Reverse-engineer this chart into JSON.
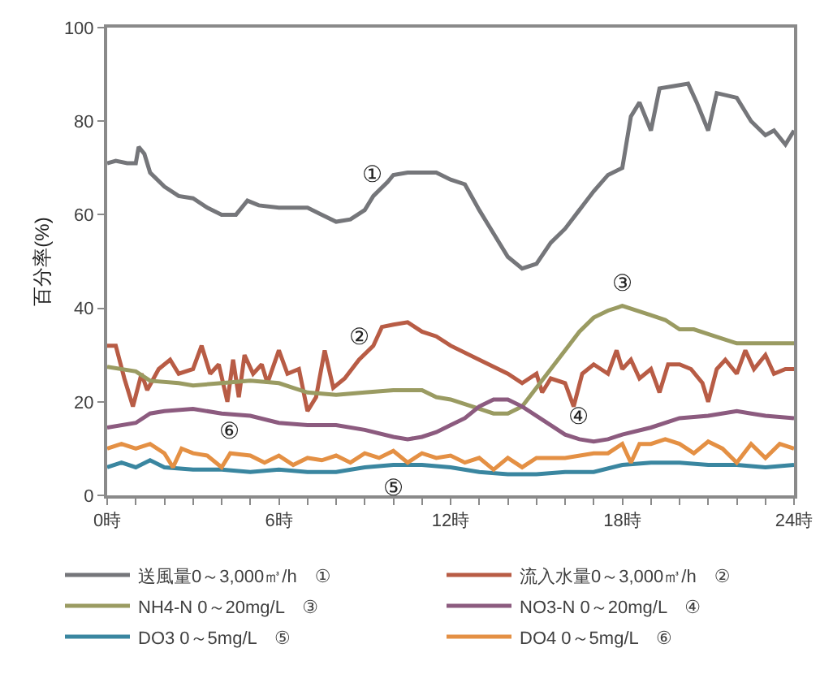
{
  "chart_data": {
    "type": "line",
    "ylabel": "百分率(%)",
    "xlim": [
      0,
      24
    ],
    "ylim": [
      0,
      100
    ],
    "yticks": [
      0,
      20,
      40,
      60,
      80,
      100
    ],
    "xticks": [
      {
        "value": 0,
        "label": "0時"
      },
      {
        "value": 1,
        "label": null
      },
      {
        "value": 2,
        "label": null
      },
      {
        "value": 3,
        "label": null
      },
      {
        "value": 4,
        "label": null
      },
      {
        "value": 5,
        "label": null
      },
      {
        "value": 6,
        "label": "6時"
      },
      {
        "value": 7,
        "label": null
      },
      {
        "value": 8,
        "label": null
      },
      {
        "value": 9,
        "label": null
      },
      {
        "value": 10,
        "label": null
      },
      {
        "value": 11,
        "label": null
      },
      {
        "value": 12,
        "label": "12時"
      },
      {
        "value": 13,
        "label": null
      },
      {
        "value": 14,
        "label": null
      },
      {
        "value": 15,
        "label": null
      },
      {
        "value": 16,
        "label": null
      },
      {
        "value": 17,
        "label": null
      },
      {
        "value": 18,
        "label": "18時"
      },
      {
        "value": 19,
        "label": null
      },
      {
        "value": 20,
        "label": null
      },
      {
        "value": 21,
        "label": null
      },
      {
        "value": 22,
        "label": null
      },
      {
        "value": 23,
        "label": null
      },
      {
        "value": 24,
        "label": "24時"
      }
    ],
    "grid": false,
    "legend": "bottom",
    "marker": "none",
    "line_style": "solid",
    "annotations": [
      {
        "text": "①",
        "x": 9.3,
        "y": 64
      },
      {
        "text": "②",
        "x": 8.8,
        "y": 29
      },
      {
        "text": "③",
        "x": 18,
        "y": 40.5
      },
      {
        "text": "④",
        "x": 16.5,
        "y": 12
      },
      {
        "text": "⑤",
        "x": 10,
        "y": 6.5
      },
      {
        "text": "⑥",
        "x": 4.3,
        "y": 9
      }
    ],
    "series": [
      {
        "name": "送風量0～3,000㎥/h　①",
        "color": "#75767a",
        "x": [
          0,
          0.3,
          0.7,
          1.0,
          1.1,
          1.3,
          1.5,
          2,
          2.5,
          3,
          3.5,
          4,
          4.5,
          4.9,
          5.3,
          6,
          7,
          7.5,
          8,
          8.5,
          9,
          9.3,
          9.8,
          10,
          10.5,
          11,
          11.5,
          12,
          12.5,
          13,
          13.5,
          14,
          14.5,
          15,
          15.5,
          16,
          16.5,
          17,
          17.5,
          18,
          18.3,
          18.6,
          19,
          19.3,
          19.8,
          20.3,
          20.6,
          21,
          21.3,
          22,
          22.5,
          23,
          23.3,
          23.7,
          24
        ],
        "values": [
          71,
          71.5,
          71,
          71,
          74.5,
          73,
          69,
          66,
          64,
          63.5,
          61.5,
          60,
          60,
          63,
          62,
          61.5,
          61.5,
          60,
          58.5,
          59,
          61,
          64,
          67,
          68.5,
          69,
          69,
          69,
          67.5,
          66.5,
          61,
          56,
          51,
          48.5,
          49.5,
          54,
          57,
          61,
          65,
          68.5,
          70,
          81,
          84,
          78,
          87,
          87.5,
          88,
          84,
          78,
          86,
          85,
          80,
          77,
          78,
          75,
          78
        ]
      },
      {
        "name": "流入水量0～3,000㎥/h　②",
        "color": "#b85c45",
        "x": [
          0,
          0.3,
          0.6,
          0.9,
          1.2,
          1.4,
          1.8,
          2.2,
          2.5,
          3,
          3.3,
          3.6,
          3.9,
          4.2,
          4.4,
          4.6,
          4.8,
          5.1,
          5.4,
          5.6,
          6,
          6.3,
          6.7,
          7,
          7.3,
          7.6,
          7.9,
          8.3,
          8.8,
          9.3,
          9.6,
          10,
          10.5,
          11,
          11.5,
          12,
          13,
          14,
          14.5,
          15,
          15.2,
          15.5,
          16,
          16.3,
          16.6,
          17,
          17.5,
          17.8,
          18,
          18.3,
          18.6,
          19,
          19.3,
          19.6,
          20,
          20.4,
          20.8,
          21,
          21.3,
          21.6,
          22,
          22.3,
          22.6,
          23,
          23.3,
          23.7,
          24
        ],
        "values": [
          32,
          32,
          25,
          19,
          26,
          22.5,
          27,
          29,
          26,
          27,
          32,
          26,
          28,
          20,
          29,
          21,
          30,
          26,
          28,
          24,
          31,
          26,
          27,
          18,
          21,
          31,
          23,
          25,
          29,
          32,
          36,
          36.5,
          37,
          35,
          34,
          32,
          29,
          26,
          24,
          26,
          22,
          25,
          24,
          19,
          26,
          28,
          26,
          31,
          27,
          29,
          25,
          27,
          22,
          28,
          28,
          27,
          24,
          20,
          27,
          29,
          26,
          31,
          27,
          30,
          26,
          27,
          27
        ]
      },
      {
        "name": "NH4-N 0～20mg/L　③",
        "color": "#9a9b62",
        "x": [
          0,
          1,
          1.5,
          2.5,
          3,
          4,
          5,
          6,
          6.5,
          7,
          8,
          9,
          10,
          11,
          11.5,
          12,
          13,
          13.5,
          14,
          14.5,
          15,
          15.5,
          16,
          16.5,
          17,
          17.5,
          18,
          18.5,
          19,
          19.5,
          20,
          20.5,
          21,
          21.5,
          22,
          23,
          24
        ],
        "values": [
          27.5,
          26.5,
          24.5,
          24,
          23.5,
          24,
          24.5,
          24,
          23,
          22,
          21.5,
          22,
          22.5,
          22.5,
          21,
          20.5,
          18.5,
          17.5,
          17.5,
          19,
          23,
          27,
          31,
          35,
          38,
          39.5,
          40.5,
          39.5,
          38.5,
          37.5,
          35.5,
          35.5,
          34.5,
          33.5,
          32.5,
          32.5,
          32.5
        ]
      },
      {
        "name": "NO3-N 0～20mg/L　④",
        "color": "#8c5b7f",
        "x": [
          0,
          1,
          1.5,
          2,
          3,
          4,
          5,
          6,
          7,
          8,
          9,
          10,
          10.5,
          11,
          11.5,
          12,
          12.5,
          13,
          13.5,
          14,
          14.5,
          15,
          15.5,
          16,
          16.5,
          17,
          17.5,
          18,
          19,
          20,
          21,
          22,
          22.5,
          23,
          24
        ],
        "values": [
          14.5,
          15.5,
          17.5,
          18,
          18.5,
          17.5,
          17,
          15.5,
          15,
          15,
          14,
          12.5,
          12,
          12.5,
          13.5,
          15,
          16.5,
          19,
          20.5,
          20.5,
          19,
          17,
          15,
          13,
          12,
          11.5,
          12,
          13,
          14.5,
          16.5,
          17,
          18,
          17.5,
          17,
          16.5
        ]
      },
      {
        "name": "DO3 0～5mg/L　⑤",
        "color": "#3a86a0",
        "x": [
          0,
          0.5,
          1,
          1.5,
          2,
          3,
          4,
          5,
          6,
          7,
          8,
          9,
          10,
          11,
          12,
          13,
          14,
          15,
          16,
          17,
          18,
          19,
          20,
          21,
          22,
          23,
          24
        ],
        "values": [
          6,
          7,
          6,
          7.5,
          6,
          5.5,
          5.5,
          5,
          5.5,
          5,
          5,
          6,
          6.5,
          6.5,
          6,
          5,
          4.5,
          4.5,
          5,
          5,
          6.5,
          7,
          7,
          6.5,
          6.5,
          6,
          6.5
        ]
      },
      {
        "name": "DO4 0～5mg/L　⑥",
        "color": "#e49044",
        "x": [
          0,
          0.5,
          1,
          1.5,
          2,
          2.3,
          2.6,
          3,
          3.5,
          4,
          4.3,
          5,
          5.5,
          6,
          6.5,
          7,
          7.5,
          8,
          8.5,
          9,
          9.5,
          10,
          10.5,
          11,
          11.5,
          12,
          12.5,
          13,
          13.5,
          14,
          14.5,
          15,
          16,
          17,
          17.5,
          18,
          18.3,
          18.6,
          19,
          19.5,
          20,
          20.5,
          21,
          21.5,
          22,
          22.5,
          23,
          23.5,
          24
        ],
        "values": [
          10,
          11,
          10,
          11,
          9,
          6,
          10,
          9,
          8.5,
          6,
          9,
          8.5,
          7,
          8.5,
          6.5,
          8,
          7.5,
          8.5,
          7,
          9,
          8,
          9.5,
          7,
          9,
          8,
          8.5,
          7,
          8,
          5.5,
          8,
          6,
          8,
          8,
          9,
          9,
          11,
          7,
          11,
          11,
          12,
          11,
          9,
          11.5,
          10,
          7,
          11,
          8,
          11,
          10
        ]
      }
    ]
  }
}
